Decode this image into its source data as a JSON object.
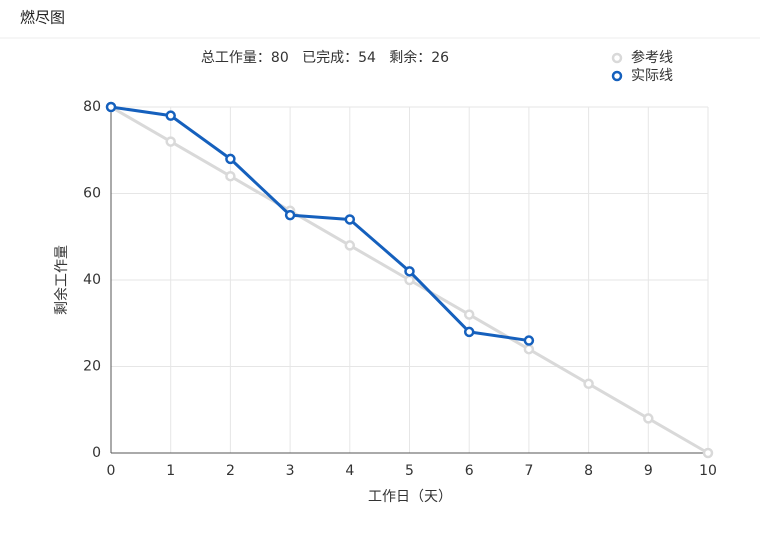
{
  "header": {
    "title": "燃尽图"
  },
  "chart_data": {
    "type": "line",
    "subtitle": "总工作量：80   已完成：54   剩余：26",
    "x_label": "工作日（天）",
    "y_label": "剩余工作量",
    "x": [
      0,
      1,
      2,
      3,
      4,
      5,
      6,
      7,
      8,
      9,
      10
    ],
    "series": [
      {
        "name": "参考线",
        "color": "#d9d9d9",
        "values": [
          80,
          72,
          64,
          56,
          48,
          40,
          32,
          24,
          16,
          8,
          0
        ]
      },
      {
        "name": "实际线",
        "color": "#1560bd",
        "values": [
          80,
          78,
          68,
          55,
          54,
          42,
          28,
          26,
          null,
          null,
          null
        ]
      }
    ],
    "xlim": [
      0,
      10
    ],
    "xticks": [
      0,
      1,
      2,
      3,
      4,
      5,
      6,
      7,
      8,
      9,
      10
    ],
    "ylim": [
      0,
      80
    ],
    "yticks": [
      0,
      20,
      40,
      60,
      80
    ],
    "grid": true,
    "legend": "top-right"
  }
}
